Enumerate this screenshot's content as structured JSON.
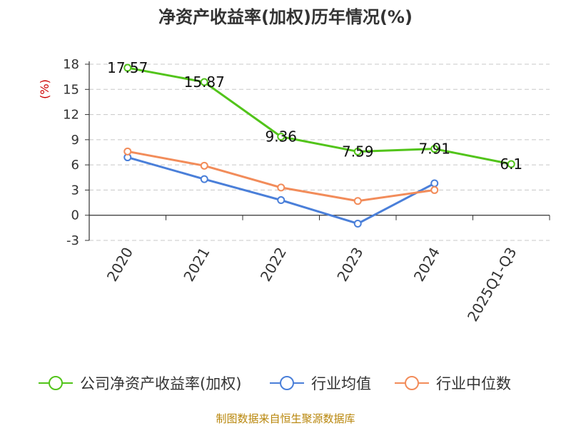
{
  "chart_data": {
    "type": "line",
    "title": "净资产收益率(加权)历年情况(%)",
    "ylabel": "(%)",
    "xlabel": "",
    "categories": [
      "2020",
      "2021",
      "2022",
      "2023",
      "2024",
      "2025Q1-Q3"
    ],
    "ylim": [
      -3,
      18
    ],
    "yticks": [
      -3,
      0,
      3,
      6,
      9,
      12,
      15,
      18
    ],
    "grid": true,
    "legend_position": "bottom",
    "series": [
      {
        "name": "公司净资产收益率(加权)",
        "color": "#52c41a",
        "values": [
          17.57,
          15.87,
          9.36,
          7.59,
          7.91,
          6.1
        ],
        "labels": [
          "17.57",
          "15.87",
          "9.36",
          "7.59",
          "7.91",
          "6.1"
        ]
      },
      {
        "name": "行业均值",
        "color": "#4a7fd9",
        "values": [
          6.9,
          4.3,
          1.8,
          -1.0,
          3.8,
          null
        ]
      },
      {
        "name": "行业中位数",
        "color": "#f28c5a",
        "values": [
          7.6,
          5.9,
          3.3,
          1.7,
          3.0,
          null
        ]
      }
    ],
    "ylabel_color": "#cc0000"
  },
  "source": {
    "text": "制图数据来自恒生聚源数据库",
    "color": "#b8860b"
  }
}
